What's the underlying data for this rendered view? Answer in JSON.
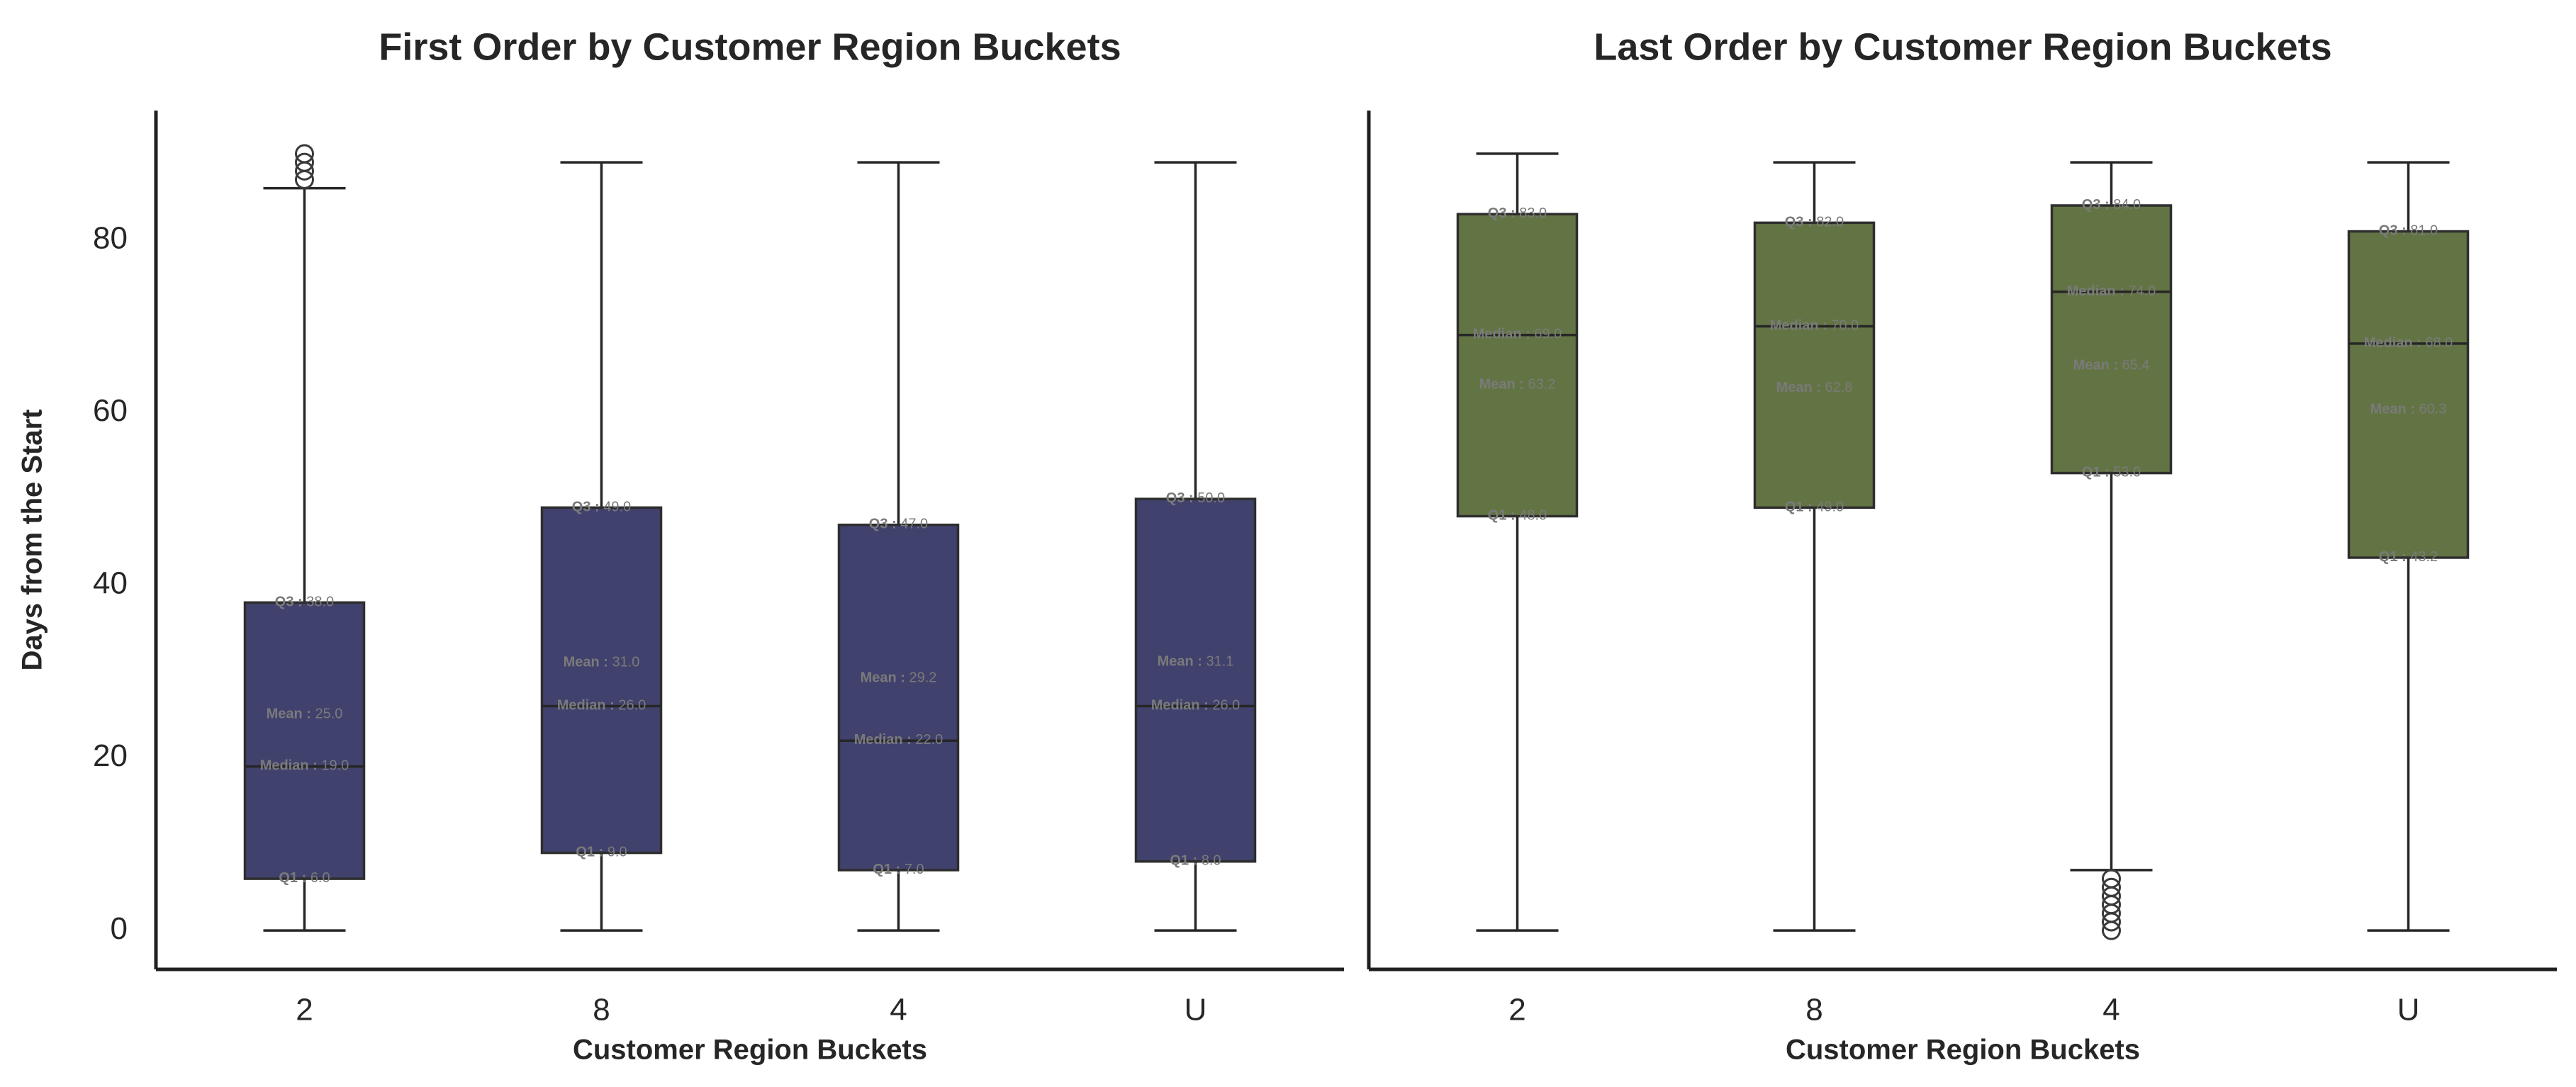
{
  "chart_data": [
    {
      "type": "box",
      "title": "First Order by Customer Region Buckets",
      "xlabel": "Customer Region Buckets",
      "ylabel": "Days from the Start",
      "categories": [
        "2",
        "8",
        "4",
        "U"
      ],
      "ylim": [
        -4.5,
        95
      ],
      "yticks": [
        0,
        20,
        40,
        60,
        80
      ],
      "grid": false,
      "box_color": "#41416e",
      "boxes": [
        {
          "whisker_low": 0,
          "q1": 6.0,
          "median": 19.0,
          "mean": 25.0,
          "q3": 38.0,
          "whisker_high": 86,
          "outliers": [
            87,
            88,
            89,
            90
          ]
        },
        {
          "whisker_low": 0,
          "q1": 9.0,
          "median": 26.0,
          "mean": 31.0,
          "q3": 49.0,
          "whisker_high": 89,
          "outliers": []
        },
        {
          "whisker_low": 0,
          "q1": 7.0,
          "median": 22.0,
          "mean": 29.2,
          "q3": 47.0,
          "whisker_high": 89,
          "outliers": []
        },
        {
          "whisker_low": 0,
          "q1": 8.0,
          "median": 26.0,
          "mean": 31.1,
          "q3": 50.0,
          "whisker_high": 89,
          "outliers": []
        }
      ]
    },
    {
      "type": "box",
      "title": "Last Order by Customer Region Buckets",
      "xlabel": "Customer Region Buckets",
      "ylabel": "",
      "categories": [
        "2",
        "8",
        "4",
        "U"
      ],
      "ylim": [
        -4.5,
        95
      ],
      "yticks": [],
      "grid": false,
      "box_color": "#637444",
      "boxes": [
        {
          "whisker_low": 0,
          "q1": 48.0,
          "median": 69.0,
          "mean": 63.2,
          "q3": 83.0,
          "whisker_high": 90,
          "outliers": []
        },
        {
          "whisker_low": 0,
          "q1": 49.0,
          "median": 70.0,
          "mean": 62.8,
          "q3": 82.0,
          "whisker_high": 89,
          "outliers": []
        },
        {
          "whisker_low": 7,
          "q1": 53.0,
          "median": 74.0,
          "mean": 65.4,
          "q3": 84.0,
          "whisker_high": 89,
          "outliers": [
            0,
            1,
            2,
            3,
            4,
            5,
            6
          ]
        },
        {
          "whisker_low": 0,
          "q1": 43.2,
          "median": 68.0,
          "mean": 60.3,
          "q3": 81.0,
          "whisker_high": 89,
          "outliers": []
        }
      ]
    }
  ],
  "labels": {
    "q1": "Q1 :",
    "q3": "Q3 :",
    "median": "Median :",
    "mean": "Mean :"
  }
}
